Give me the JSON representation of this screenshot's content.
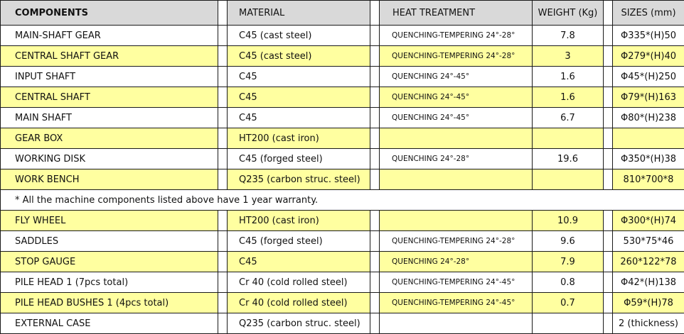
{
  "header": {
    "components": "COMPONENTS",
    "material": "MATERIAL",
    "heat_treatment": "HEAT  TREATMENT",
    "weight": "WEIGHT (Kg)",
    "sizes": "SIZES (mm)"
  },
  "rows_top": [
    {
      "component": "MAIN-SHAFT GEAR",
      "material": "C45 (cast steel)",
      "heat": "QUENCHING-TEMPERING 24°-28°",
      "weight": "7.8",
      "size": "Φ335*(H)50",
      "highlight": false
    },
    {
      "component": "CENTRAL SHAFT GEAR",
      "material": "C45 (cast steel)",
      "heat": "QUENCHING-TEMPERING 24°-28°",
      "weight": "3",
      "size": "Φ279*(H)40",
      "highlight": true
    },
    {
      "component": "INPUT SHAFT",
      "material": "C45",
      "heat": "QUENCHING  24°-45°",
      "weight": "1.6",
      "size": "Φ45*(H)250",
      "highlight": false
    },
    {
      "component": "CENTRAL SHAFT",
      "material": "C45",
      "heat": "QUENCHING  24°-45°",
      "weight": "1.6",
      "size": "Φ79*(H)163",
      "highlight": true
    },
    {
      "component": "MAIN SHAFT",
      "material": "C45",
      "heat": "QUENCHING  24°-45°",
      "weight": "6.7",
      "size": "Φ80*(H)238",
      "highlight": false
    },
    {
      "component": "GEAR BOX",
      "material": "HT200 (cast iron)",
      "heat": "",
      "weight": "",
      "size": "",
      "highlight": true
    },
    {
      "component": "WORKING DISK",
      "material": "C45 (forged steel)",
      "heat": "QUENCHING  24°-28°",
      "weight": "19.6",
      "size": "Φ350*(H)38",
      "highlight": false
    },
    {
      "component": "WORK BENCH",
      "material": "Q235 (carbon struc. steel)",
      "heat": "",
      "weight": "",
      "size": "810*700*8",
      "highlight": true
    }
  ],
  "note": "* All the machine components listed above have 1 year warranty.",
  "rows_bottom": [
    {
      "component": "FLY WHEEL",
      "material": "HT200 (cast iron)",
      "heat": "",
      "weight": "10.9",
      "size": "Φ300*(H)74",
      "highlight": true
    },
    {
      "component": "SADDLES",
      "material": "C45 (forged steel)",
      "heat": "QUENCHING-TEMPERING 24°-28°",
      "weight": "9.6",
      "size": "530*75*46",
      "highlight": false
    },
    {
      "component": "STOP GAUGE",
      "material": "C45",
      "heat": "QUENCHING  24°-28°",
      "weight": "7.9",
      "size": "260*122*78",
      "highlight": true
    },
    {
      "component": "PILE HEAD 1 (7pcs total)",
      "material": "Cr 40 (cold rolled steel)",
      "heat": "QUENCHING-TEMPERING 24°-45°",
      "weight": "0.8",
      "size": "Φ42*(H)138",
      "highlight": false
    },
    {
      "component": "PILE HEAD BUSHES 1 (4pcs total)",
      "material": "Cr 40 (cold rolled steel)",
      "heat": "QUENCHING-TEMPERING 24°-45°",
      "weight": "0.7",
      "size": "Φ59*(H)78",
      "highlight": true
    },
    {
      "component": "EXTERNAL CASE",
      "material": "Q235 (carbon struc. steel)",
      "heat": "",
      "weight": "",
      "size": "2 (thickness)",
      "highlight": false
    }
  ],
  "colors": {
    "highlight": "#ffffa0",
    "header": "#d9d9d9",
    "border": "#1a1a1a"
  }
}
